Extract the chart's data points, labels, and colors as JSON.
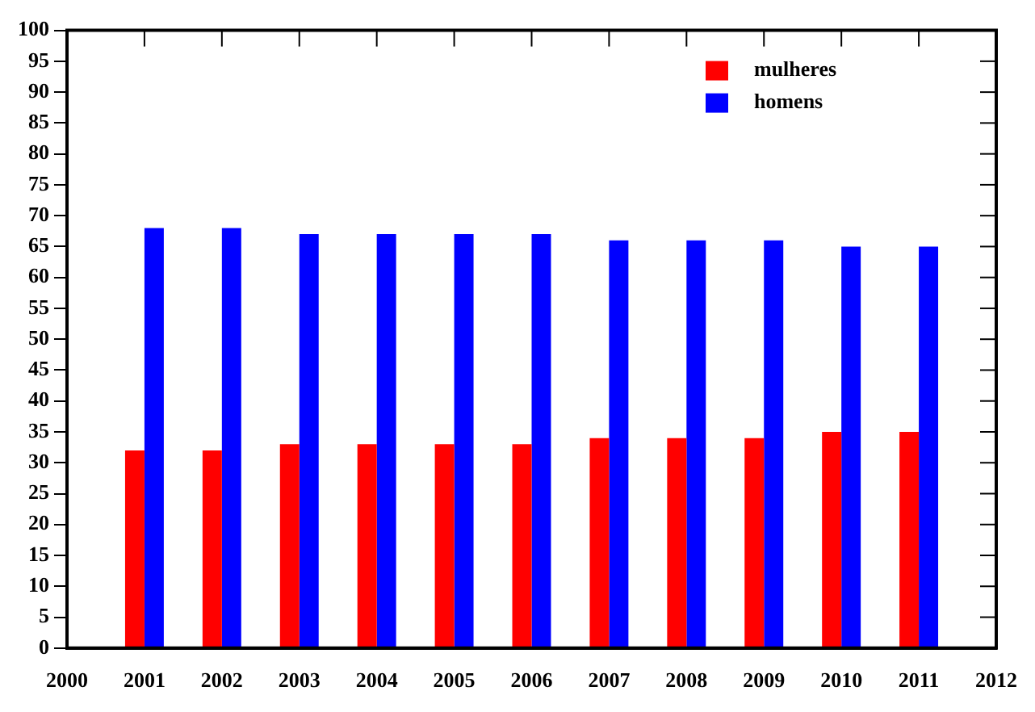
{
  "chart_data": {
    "type": "bar",
    "x": [
      2001,
      2002,
      2003,
      2004,
      2005,
      2006,
      2007,
      2008,
      2009,
      2010,
      2011
    ],
    "series": [
      {
        "name": "mulheres",
        "color": "#ff0000",
        "values": [
          32,
          32,
          33,
          33,
          33,
          33,
          34,
          34,
          34,
          35,
          35
        ]
      },
      {
        "name": "homens",
        "color": "#0000ff",
        "values": [
          68,
          68,
          67,
          67,
          67,
          67,
          66,
          66,
          66,
          65,
          65
        ]
      }
    ],
    "xlim": [
      2000,
      2012
    ],
    "xticks": [
      2000,
      2001,
      2002,
      2003,
      2004,
      2005,
      2006,
      2007,
      2008,
      2009,
      2010,
      2011,
      2012
    ],
    "ylim": [
      0,
      100
    ],
    "yticks": [
      0,
      5,
      10,
      15,
      20,
      25,
      30,
      35,
      40,
      45,
      50,
      55,
      60,
      65,
      70,
      75,
      80,
      85,
      90,
      95,
      100
    ],
    "grid": false,
    "legend": "top right"
  }
}
